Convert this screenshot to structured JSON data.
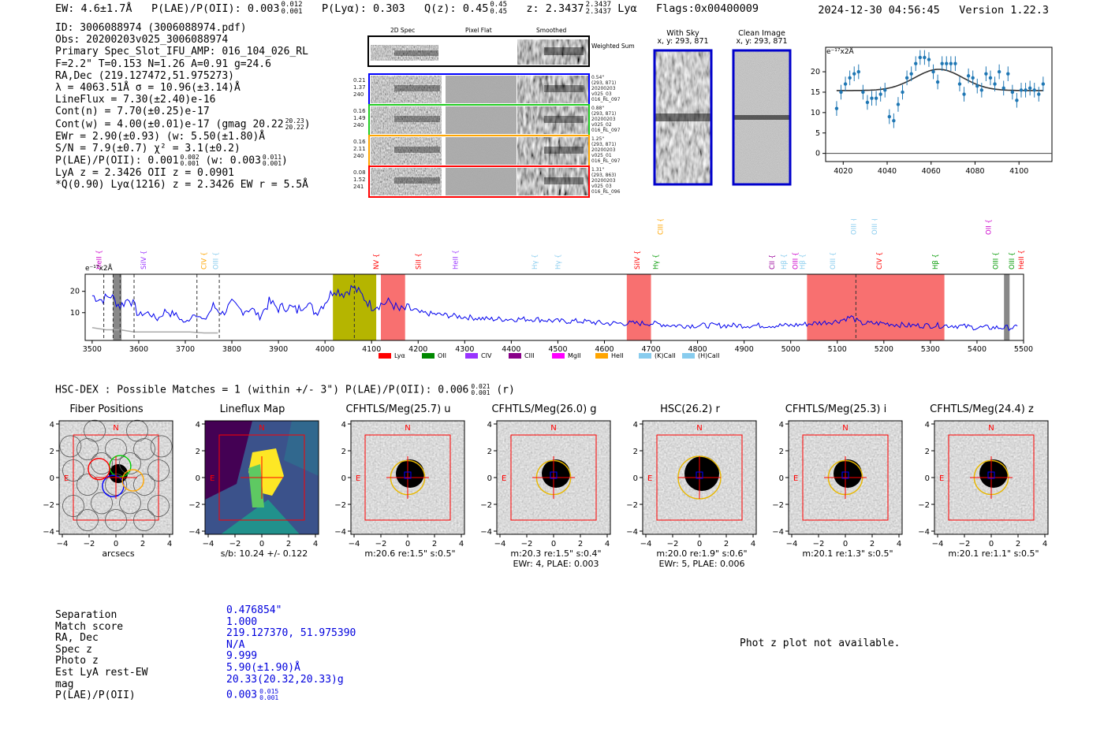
{
  "header": {
    "ew": "EW: 4.6±1.7Å",
    "plae_label": "P(LAE)/P(OII): 0.003",
    "plae_hi": "0.012",
    "plae_lo": "0.001",
    "plya": "P(Lyα): 0.303",
    "qz_label": "Q(z): 0.45",
    "qz_hi": "0.45",
    "qz_lo": "0.45",
    "z_label": "z: 2.3437",
    "z_hi": "2.3437",
    "z_lo": "2.3437",
    "line": "Lyα",
    "flags": "Flags:0x00400009",
    "timestamp": "2024-12-30 04:56:45",
    "version": "Version 1.22.3"
  },
  "info": {
    "id": "ID: 3006088974 (3006088974.pdf)",
    "obs": "Obs: 20200203v025_3006088974",
    "primary": "Primary Spec_Slot_IFU_AMP: 016_104_026_RL",
    "params": "F=2.2\"  T=0.153  N=1.26  A=0.91  g=24.6",
    "radec": "RA,Dec (219.127472,51.975273)",
    "lambda": "λ = 4063.51Å  σ = 10.96(±3.14)Å",
    "lineflux": "LineFlux = 7.30(±2.40)e-16",
    "contn": "Cont(n) = 7.70(±0.25)e-17",
    "contw_label": "Cont(w) = 4.00(±0.01)e-17 (gmag 20.22",
    "contw_hi": "20.23",
    "contw_lo": "20.22",
    "ewr": "EWr = 2.90(±0.93) (w: 5.50(±1.80)Å",
    "sn": "S/N = 7.9(±0.7)  χ² = 3.1(±0.2)",
    "plae_label": "P(LAE)/P(OII): 0.001",
    "plae_hi": "0.002",
    "plae_lo": "0.001",
    "plae_w_label": "(w: 0.003",
    "plae_w_hi": "0.011",
    "plae_w_lo": "0.001",
    "lya_z": "LyA z = 2.3426   OII z = 0.0901",
    "q_line": "*Q(0.90) Lyα(1216) z = 2.3426   EW r = 5.5Å"
  },
  "spec2d": {
    "col_headers": [
      "2D Spec",
      "Pixel Flat",
      "Smoothed"
    ],
    "weighted_label": "Weighted Sum",
    "rows": [
      {
        "left": [
          "0.21",
          "1.37",
          "240"
        ],
        "right": [
          "0.54\"",
          "(293, 871)",
          "20200203",
          "v025_03",
          "016_RL_097"
        ],
        "color": "#0000ff"
      },
      {
        "left": [
          "0.16",
          "1.49",
          "240"
        ],
        "right": [
          "0.88\"",
          "(293, 871)",
          "20200203",
          "v025_02",
          "016_RL_097"
        ],
        "color": "#22cc22"
      },
      {
        "left": [
          "0.16",
          "2.11",
          "240"
        ],
        "right": [
          "1.25\"",
          "(293, 871)",
          "20200203",
          "v025_01",
          "016_RL_097"
        ],
        "color": "#ffa500"
      },
      {
        "left": [
          "0.08",
          "1.52",
          "241"
        ],
        "right": [
          "1.31\"",
          "(293, 863)",
          "20200203",
          "v025_03",
          "016_RL_096"
        ],
        "color": "#ff0000"
      }
    ]
  },
  "sky_panels": {
    "with_sky_title": "With Sky",
    "with_sky_xy": "x, y: 293, 871",
    "clean_title": "Clean Image",
    "clean_xy": "x, y: 293, 871"
  },
  "zoom_chart": {
    "unit_label": "e⁻¹⁷x2Å"
  },
  "full_spectrum": {
    "unit_label": "e⁻¹⁷x2Å",
    "line_labels": [
      {
        "name": "HeII",
        "color": "#cc00cc",
        "wave": 3515,
        "row": 0
      },
      {
        "name": "SiIV",
        "color": "#9933ff",
        "wave": 3610,
        "row": 0
      },
      {
        "name": "CIV",
        "color": "#ffa500",
        "wave": 3740,
        "row": 0
      },
      {
        "name": "OIII",
        "color": "#88ccee",
        "wave": 3765,
        "row": 0
      },
      {
        "name": "NV",
        "color": "#ff0000",
        "wave": 4110,
        "row": 0
      },
      {
        "name": "SiII",
        "color": "#ff0000",
        "wave": 4200,
        "row": 0
      },
      {
        "name": "HeII",
        "color": "#9933ff",
        "wave": 4280,
        "row": 0
      },
      {
        "name": "Hγ",
        "color": "#88ccee",
        "wave": 4450,
        "row": 0
      },
      {
        "name": "Hγ",
        "color": "#88ccee",
        "wave": 4500,
        "row": 0
      },
      {
        "name": "SiIV",
        "color": "#ff0000",
        "wave": 4670,
        "row": 0
      },
      {
        "name": "CIII",
        "color": "#ffa500",
        "wave": 4720,
        "row": 1
      },
      {
        "name": "Hγ",
        "color": "#009900",
        "wave": 4710,
        "row": 0
      },
      {
        "name": "CII",
        "color": "#990099",
        "wave": 4960,
        "row": 0
      },
      {
        "name": "Hβ",
        "color": "#88ccee",
        "wave": 4985,
        "row": 0
      },
      {
        "name": "OIII",
        "color": "#cc00cc",
        "wave": 5010,
        "row": 0
      },
      {
        "name": "Hβ",
        "color": "#88ccee",
        "wave": 5025,
        "row": 0
      },
      {
        "name": "OIII",
        "color": "#88ccee",
        "wave": 5090,
        "row": 0
      },
      {
        "name": "OIII",
        "color": "#88ccee",
        "wave": 5135,
        "row": 1
      },
      {
        "name": "OIII",
        "color": "#88ccee",
        "wave": 5180,
        "row": 1
      },
      {
        "name": "CIV",
        "color": "#ff0000",
        "wave": 5190,
        "row": 0
      },
      {
        "name": "Hβ",
        "color": "#009900",
        "wave": 5310,
        "row": 0
      },
      {
        "name": "OII",
        "color": "#cc00cc",
        "wave": 5425,
        "row": 1
      },
      {
        "name": "OIII",
        "color": "#009900",
        "wave": 5440,
        "row": 0
      },
      {
        "name": "OIII",
        "color": "#009900",
        "wave": 5475,
        "row": 0
      },
      {
        "name": "HeII",
        "color": "#ff0000",
        "wave": 5495,
        "row": 0
      }
    ],
    "legend": [
      {
        "name": "Lyα",
        "color": "#ff0000"
      },
      {
        "name": "OII",
        "color": "#008800"
      },
      {
        "name": "CIV",
        "color": "#9933ff"
      },
      {
        "name": "CIII",
        "color": "#880088"
      },
      {
        "name": "MgII",
        "color": "#ff00ff"
      },
      {
        "name": "HeII",
        "color": "#ffa500"
      },
      {
        "name": "(K)CaII",
        "color": "#88ccee"
      },
      {
        "name": "(H)CaII",
        "color": "#88ccee"
      }
    ]
  },
  "hsc": {
    "prefix": "HSC-DEX : Possible Matches = 1 (within +/- 3\")  P(LAE)/P(OII): 0.006",
    "hi": "0.021",
    "lo": "0.001",
    "suffix": "(r)"
  },
  "cutouts": [
    {
      "title": "Fiber Positions",
      "sub1": "arcsecs",
      "sub2": ""
    },
    {
      "title": "Lineflux Map",
      "sub1": "s/b: 10.24 +/- 0.122",
      "sub2": ""
    },
    {
      "title": "CFHTLS/Meg(25.7) u",
      "sub1": "m:20.6  re:1.5\"  s:0.5\"",
      "sub2": ""
    },
    {
      "title": "CFHTLS/Meg(26.0) g",
      "sub1": "m:20.3  re:1.5\"  s:0.4\"",
      "sub2": "EWr: 4, PLAE: 0.003"
    },
    {
      "title": "HSC(26.2) r",
      "sub1": "m:20.0  re:1.9\"  s:0.6\"",
      "sub2": "EWr: 5, PLAE: 0.006"
    },
    {
      "title": "CFHTLS/Meg(25.3) i",
      "sub1": "m:20.1  re:1.3\"  s:0.5\"",
      "sub2": ""
    },
    {
      "title": "CFHTLS/Meg(24.4) z",
      "sub1": "m:20.1  re:1.1\"  s:0.5\"",
      "sub2": ""
    }
  ],
  "cutout_axes": {
    "x_ticks": [
      "−4",
      "−2",
      "0",
      "2",
      "4"
    ],
    "y_ticks": [
      "4",
      "2",
      "0",
      "−2",
      "−4"
    ],
    "north": "N",
    "east": "E"
  },
  "match": {
    "labels": [
      "Separation",
      "Match score",
      "RA, Dec",
      "Spec z",
      "Photo z",
      "Est LyA rest-EW",
      "mag",
      "P(LAE)/P(OII)"
    ],
    "values": [
      "0.476854\"",
      "1.000",
      "219.127370, 51.975390",
      "N/A",
      "9.999",
      "5.90(±1.90)Å",
      "20.33(20.32,20.33)g"
    ],
    "plae_value": "0.003",
    "plae_hi": "0.015",
    "plae_lo": "0.001"
  },
  "photz_msg": "Phot z plot not available.",
  "chart_data": [
    {
      "type": "scatter",
      "title": "",
      "xlabel": "",
      "ylabel": "e-17x2Å",
      "xlim": [
        4012,
        4115
      ],
      "ylim": [
        -2,
        26
      ],
      "x_ticks": [
        4020,
        4040,
        4060,
        4080,
        4100
      ],
      "y_ticks": [
        0,
        5,
        10,
        15,
        20
      ],
      "x": [
        4017,
        4019,
        4021,
        4023,
        4025,
        4027,
        4029,
        4031,
        4033,
        4035,
        4037,
        4039,
        4041,
        4043,
        4045,
        4047,
        4049,
        4051,
        4053,
        4055,
        4057,
        4059,
        4061,
        4063,
        4065,
        4067,
        4069,
        4071,
        4073,
        4075,
        4077,
        4079,
        4081,
        4083,
        4085,
        4087,
        4089,
        4091,
        4093,
        4095,
        4097,
        4099,
        4101,
        4103,
        4105,
        4107,
        4109,
        4111
      ],
      "y": [
        11,
        15,
        17,
        18.5,
        19.5,
        20,
        15,
        12.5,
        13.5,
        13.5,
        14.5,
        15.5,
        9,
        8,
        12,
        15,
        18.5,
        19.5,
        22,
        23.5,
        23.5,
        23,
        20,
        17.5,
        22,
        22,
        22,
        22,
        17,
        14.5,
        19,
        18.5,
        16.5,
        15.5,
        19.5,
        18.5,
        17,
        20,
        16,
        19.5,
        15,
        13,
        15.5,
        15.5,
        16,
        15.5,
        14.5,
        17
      ],
      "yerr": 1.8,
      "fit_model": {
        "continuum": 15.4,
        "amplitude": 5.2,
        "center": 4063.5,
        "sigma": 10.96
      }
    },
    {
      "type": "line",
      "title": "",
      "xlabel": "",
      "ylabel": "e-17x2Å",
      "xlim": [
        3485,
        5500
      ],
      "ylim": [
        -3,
        28
      ],
      "x_ticks": [
        3500,
        3600,
        3700,
        3800,
        3900,
        4000,
        4100,
        4200,
        4300,
        4400,
        4500,
        4600,
        4700,
        4800,
        4900,
        5000,
        5100,
        5200,
        5300,
        5400,
        5500
      ],
      "y_ticks": [
        10,
        20
      ],
      "shaded_regions": [
        {
          "from": 3545,
          "to": 3563,
          "color": "#888888"
        },
        {
          "from": 4017,
          "to": 4110,
          "color": "#b5b500"
        },
        {
          "from": 4120,
          "to": 4172,
          "color": "#f87070"
        },
        {
          "from": 4648,
          "to": 4700,
          "color": "#f87070"
        },
        {
          "from": 5035,
          "to": 5330,
          "color": "#f87070"
        },
        {
          "from": 5458,
          "to": 5470,
          "color": "#888888"
        }
      ],
      "dashed_lines": [
        3525,
        3545,
        3560,
        3590,
        3725,
        3773,
        4063,
        5140
      ],
      "x": [
        3500,
        3520,
        3540,
        3560,
        3580,
        3600,
        3620,
        3640,
        3660,
        3680,
        3700,
        3720,
        3740,
        3760,
        3780,
        3800,
        3820,
        3840,
        3860,
        3880,
        3900,
        3920,
        3940,
        3960,
        3980,
        4000,
        4020,
        4040,
        4060,
        4080,
        4100,
        4120,
        4140,
        4160,
        4180,
        4200,
        4250,
        4300,
        4350,
        4400,
        4450,
        4500,
        4550,
        4600,
        4650,
        4700,
        4750,
        4800,
        4850,
        4900,
        4950,
        5000,
        5050,
        5100,
        5130,
        5150,
        5200,
        5250,
        5300,
        5350,
        5400,
        5450,
        5480,
        5490
      ],
      "y": [
        18,
        16,
        18,
        13,
        17,
        9,
        10,
        7,
        11,
        9,
        5,
        10,
        6,
        13,
        10,
        14,
        11,
        12,
        8,
        15,
        12,
        13,
        11,
        15,
        10,
        15,
        21,
        19,
        22,
        18,
        13,
        14,
        15,
        11,
        12,
        10,
        9,
        8,
        7,
        7,
        7,
        6,
        6,
        5,
        5,
        5,
        4,
        4,
        4,
        4,
        4,
        4,
        5,
        6,
        8,
        5,
        5,
        4,
        4,
        4,
        3,
        3,
        3,
        3
      ],
      "sky_residual": [
        3,
        2,
        2,
        1,
        1,
        1,
        1,
        1,
        0.5,
        0.5
      ]
    }
  ]
}
